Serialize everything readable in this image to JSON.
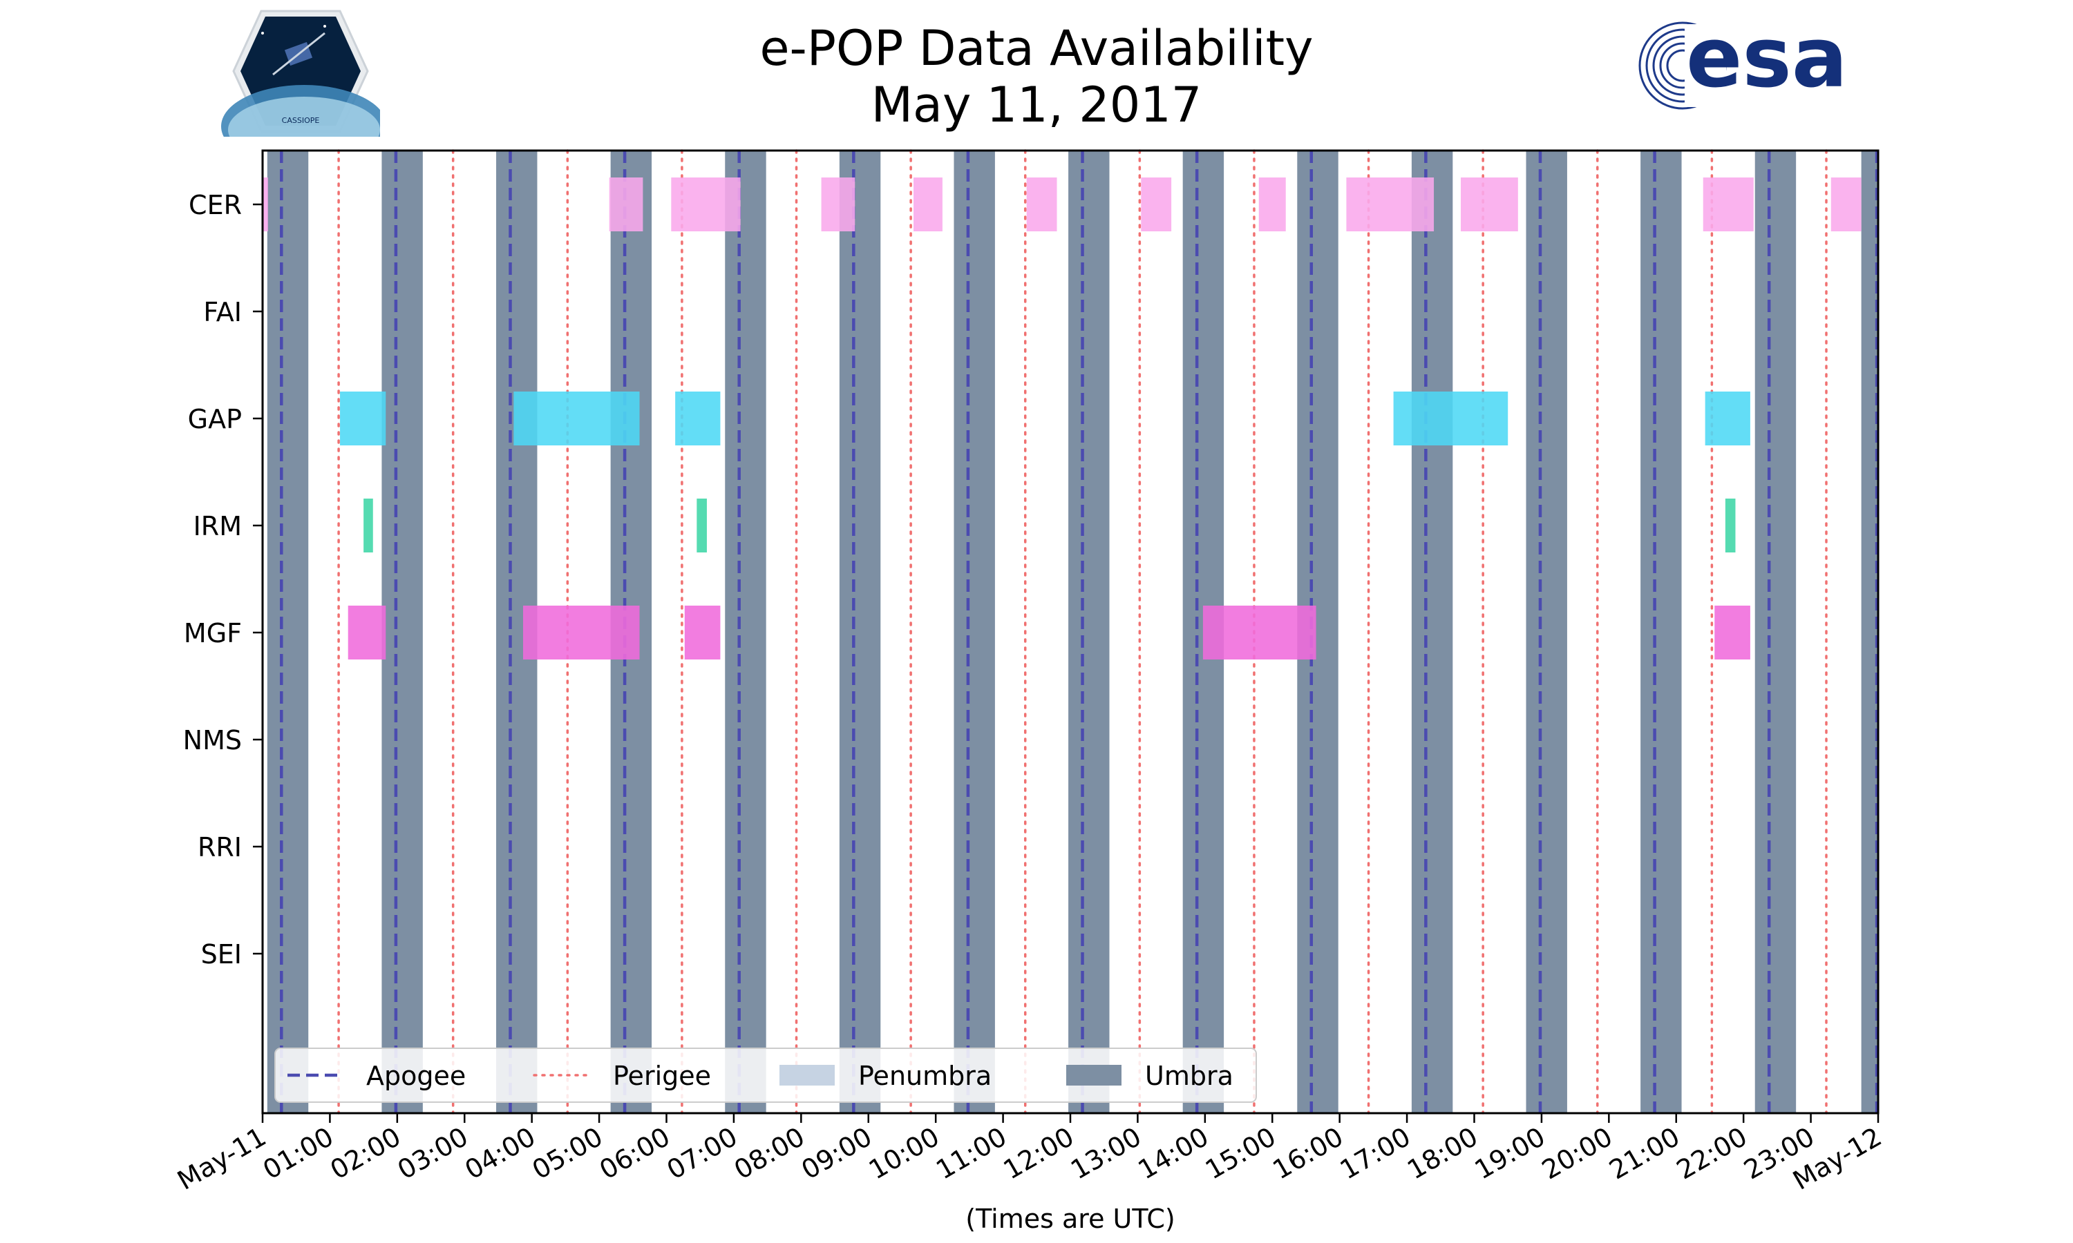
{
  "chart_data": {
    "type": "timeline",
    "title": "e-POP Data Availability",
    "subtitle": "May 11, 2017",
    "xlabel": "(Times are UTC)",
    "xlim": [
      0,
      24
    ],
    "x_tick_labels": [
      "May-11",
      "01:00",
      "02:00",
      "03:00",
      "04:00",
      "05:00",
      "06:00",
      "07:00",
      "08:00",
      "09:00",
      "10:00",
      "11:00",
      "12:00",
      "13:00",
      "14:00",
      "15:00",
      "16:00",
      "17:00",
      "18:00",
      "19:00",
      "20:00",
      "21:00",
      "22:00",
      "23:00",
      "May-12"
    ],
    "instruments": [
      "CER",
      "FAI",
      "GAP",
      "IRM",
      "MGF",
      "NMS",
      "RRI",
      "SEI"
    ],
    "umbra": [
      [
        0.07,
        0.68
      ],
      [
        1.77,
        2.38
      ],
      [
        3.47,
        4.08
      ],
      [
        5.17,
        5.78
      ],
      [
        6.87,
        7.48
      ],
      [
        8.57,
        9.18
      ],
      [
        10.27,
        10.88
      ],
      [
        11.97,
        12.58
      ],
      [
        13.67,
        14.28
      ],
      [
        15.37,
        15.98
      ],
      [
        17.07,
        17.68
      ],
      [
        18.77,
        19.38
      ],
      [
        20.47,
        21.08
      ],
      [
        22.17,
        22.78
      ],
      [
        23.75,
        24.0
      ]
    ],
    "apogee": [
      0.28,
      1.98,
      3.68,
      5.38,
      7.08,
      8.78,
      10.48,
      12.18,
      13.88,
      15.58,
      17.28,
      18.98,
      20.68,
      22.38,
      23.98
    ],
    "perigee": [
      1.13,
      2.83,
      4.53,
      6.23,
      7.93,
      9.63,
      11.33,
      13.03,
      14.73,
      16.43,
      18.13,
      19.83,
      21.53,
      23.23
    ],
    "availability": {
      "CER": [
        [
          0.0,
          0.08
        ],
        [
          5.15,
          5.65
        ],
        [
          6.07,
          7.1
        ],
        [
          8.3,
          8.8
        ],
        [
          9.67,
          10.1
        ],
        [
          11.35,
          11.8
        ],
        [
          13.05,
          13.5
        ],
        [
          14.8,
          15.2
        ],
        [
          16.1,
          17.4
        ],
        [
          17.8,
          18.65
        ],
        [
          21.4,
          22.15
        ],
        [
          23.3,
          23.75
        ]
      ],
      "FAI": [],
      "GAP": [
        [
          1.15,
          1.83
        ],
        [
          3.73,
          5.6
        ],
        [
          6.13,
          6.8
        ],
        [
          16.8,
          18.5
        ],
        [
          21.43,
          22.1
        ]
      ],
      "IRM": [
        [
          1.5,
          1.64
        ],
        [
          6.45,
          6.6
        ],
        [
          21.73,
          21.88
        ]
      ],
      "MGF": [
        [
          1.27,
          1.83
        ],
        [
          3.87,
          5.6
        ],
        [
          6.27,
          6.8
        ],
        [
          13.97,
          15.65
        ],
        [
          21.57,
          22.1
        ]
      ],
      "NMS": [],
      "RRI": [],
      "SEI": []
    },
    "instrument_colors": {
      "CER": "#f9a8ec",
      "GAP": "#4dd8f5",
      "IRM": "#3ed6a6",
      "MGF": "#f06bdc"
    },
    "legend": [
      {
        "label": "Apogee",
        "style": "dashed",
        "color": "#4b4bb0"
      },
      {
        "label": "Perigee",
        "style": "dotted",
        "color": "#f07070"
      },
      {
        "label": "Penumbra",
        "style": "patch",
        "color": "#c6d3e3"
      },
      {
        "label": "Umbra",
        "style": "patch",
        "color": "#7d8fa3"
      }
    ],
    "legend_position": "lower-left",
    "grid": false
  },
  "logos": {
    "left_text": "CASSIOPE",
    "right_text": "esa"
  }
}
